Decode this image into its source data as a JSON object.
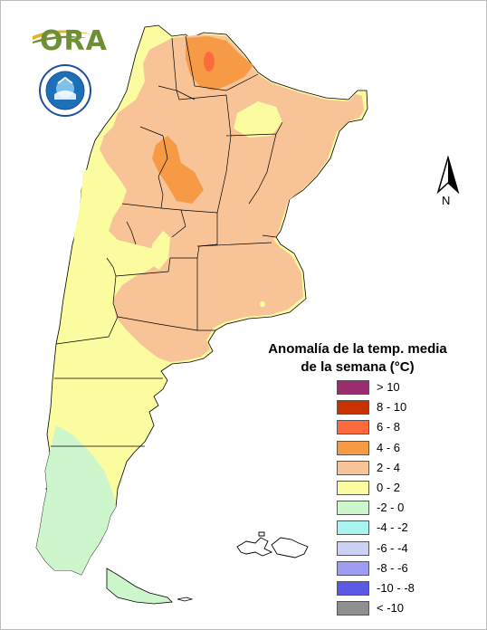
{
  "map": {
    "title_line1": "Anomalía de la temp. media",
    "title_line2": "de la semana (°C)",
    "north_label": "N",
    "logo_text": "ORA",
    "legend": [
      {
        "label": "> 10",
        "color": "#9b2c6e"
      },
      {
        "label": "8 - 10",
        "color": "#c83200"
      },
      {
        "label": "6 - 8",
        "color": "#ff6a3d"
      },
      {
        "label": "4 - 6",
        "color": "#f79a45"
      },
      {
        "label": "2 - 4",
        "color": "#f8c497"
      },
      {
        "label": "0 - 2",
        "color": "#fbfba0"
      },
      {
        "label": "-2 - 0",
        "color": "#cdf6cd"
      },
      {
        "label": "-4 - -2",
        "color": "#a9f4f1"
      },
      {
        "label": "-6 - -4",
        "color": "#cdd0f5"
      },
      {
        "label": "-8 - -6",
        "color": "#9d9bf2"
      },
      {
        "label": "-10 - -8",
        "color": "#5a5ae6"
      },
      {
        "label": "< -10",
        "color": "#8f8f8f"
      }
    ]
  }
}
